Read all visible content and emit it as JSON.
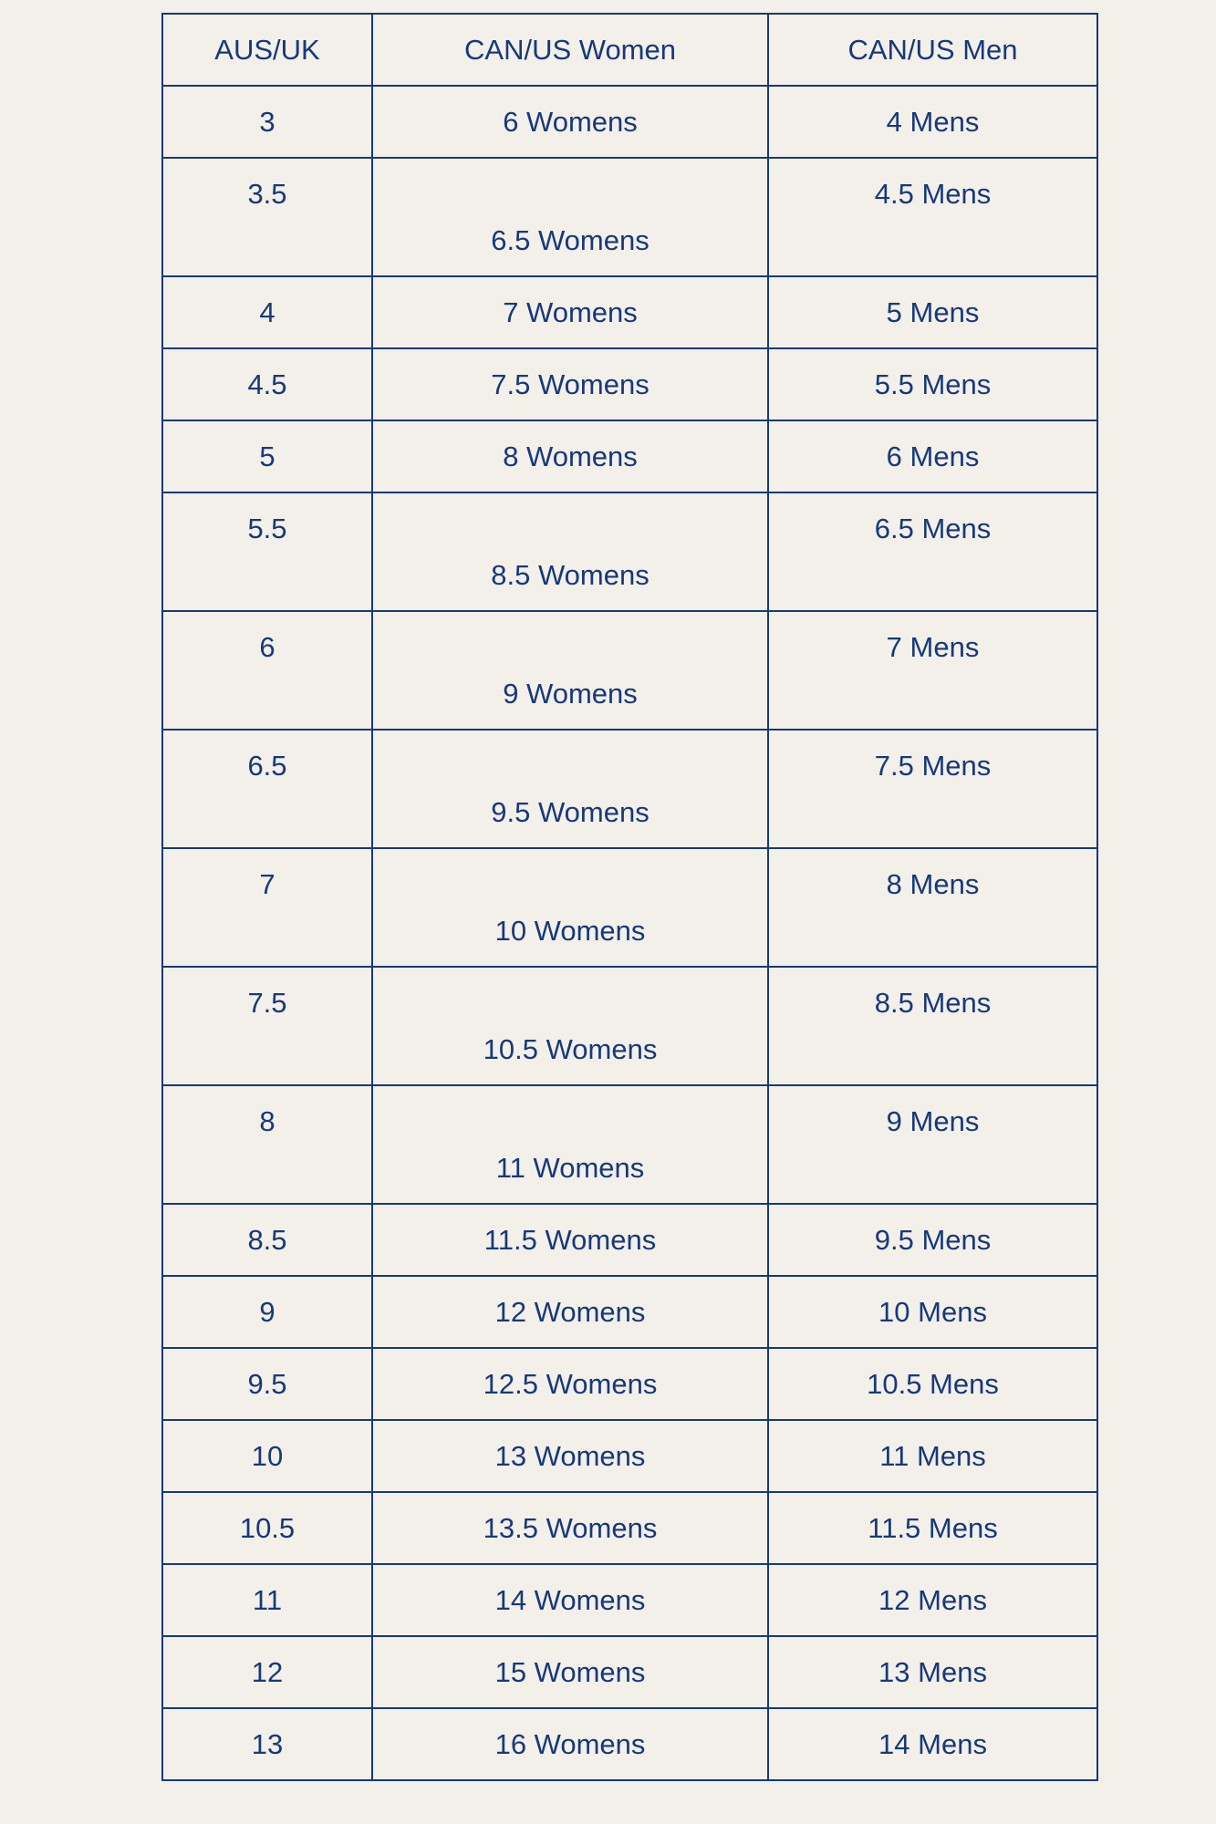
{
  "colors": {
    "background": "#f3efe9",
    "text_and_border": "#17397a"
  },
  "table": {
    "headers": [
      "AUS/UK",
      "CAN/US Women",
      "CAN/US Men"
    ],
    "rows": [
      {
        "aus_uk": "3",
        "women": "6 Womens",
        "men": "4 Mens",
        "tall": false
      },
      {
        "aus_uk": "3.5",
        "women": "6.5 Womens",
        "men": "4.5 Mens",
        "tall": true
      },
      {
        "aus_uk": "4",
        "women": "7 Womens",
        "men": "5 Mens",
        "tall": false
      },
      {
        "aus_uk": "4.5",
        "women": "7.5 Womens",
        "men": "5.5 Mens",
        "tall": false
      },
      {
        "aus_uk": "5",
        "women": "8 Womens",
        "men": "6 Mens",
        "tall": false
      },
      {
        "aus_uk": "5.5",
        "women": "8.5 Womens",
        "men": "6.5 Mens",
        "tall": true
      },
      {
        "aus_uk": "6",
        "women": "9 Womens",
        "men": "7 Mens",
        "tall": true
      },
      {
        "aus_uk": "6.5",
        "women": "9.5 Womens",
        "men": "7.5 Mens",
        "tall": true
      },
      {
        "aus_uk": "7",
        "women": "10 Womens",
        "men": "8 Mens",
        "tall": true
      },
      {
        "aus_uk": "7.5",
        "women": "10.5 Womens",
        "men": "8.5 Mens",
        "tall": true
      },
      {
        "aus_uk": "8",
        "women": "11 Womens",
        "men": "9 Mens",
        "tall": true
      },
      {
        "aus_uk": "8.5",
        "women": "11.5 Womens",
        "men": "9.5 Mens",
        "tall": false
      },
      {
        "aus_uk": "9",
        "women": "12 Womens",
        "men": "10 Mens",
        "tall": false
      },
      {
        "aus_uk": "9.5",
        "women": "12.5 Womens",
        "men": "10.5 Mens",
        "tall": false
      },
      {
        "aus_uk": "10",
        "women": "13 Womens",
        "men": "11 Mens",
        "tall": false
      },
      {
        "aus_uk": "10.5",
        "women": "13.5 Womens",
        "men": "11.5 Mens",
        "tall": false
      },
      {
        "aus_uk": "11",
        "women": "14 Womens",
        "men": "12 Mens",
        "tall": false
      },
      {
        "aus_uk": "12",
        "women": "15 Womens",
        "men": "13 Mens",
        "tall": false
      },
      {
        "aus_uk": "13",
        "women": "16 Womens",
        "men": "14 Mens",
        "tall": false
      }
    ]
  }
}
